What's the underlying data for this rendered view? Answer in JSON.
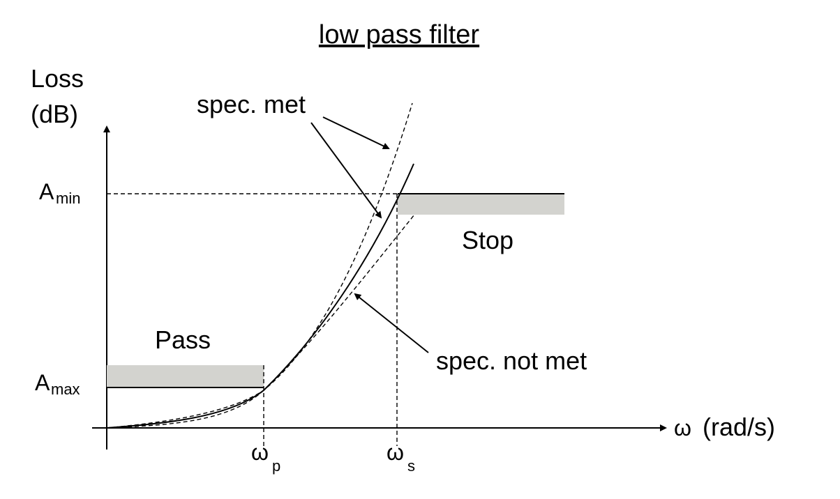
{
  "title": "low pass filter",
  "y_axis": {
    "line1": "Loss",
    "line2": "(dB)"
  },
  "x_axis": {
    "omega": "ω",
    "unit": "(rad/s)"
  },
  "ticks": {
    "a_min_main": "A",
    "a_min_sub": "min",
    "a_max_main": "A",
    "a_max_sub": "max",
    "omega_p_main": "ω",
    "omega_p_sub": "p",
    "omega_s_main": "ω",
    "omega_s_sub": "s"
  },
  "regions": {
    "pass": "Pass",
    "stop": "Stop"
  },
  "annotations": {
    "spec_met": "spec. met",
    "spec_not_met": "spec. not met"
  },
  "colors": {
    "band_fill": "#d3d3cf",
    "line": "#000000"
  }
}
